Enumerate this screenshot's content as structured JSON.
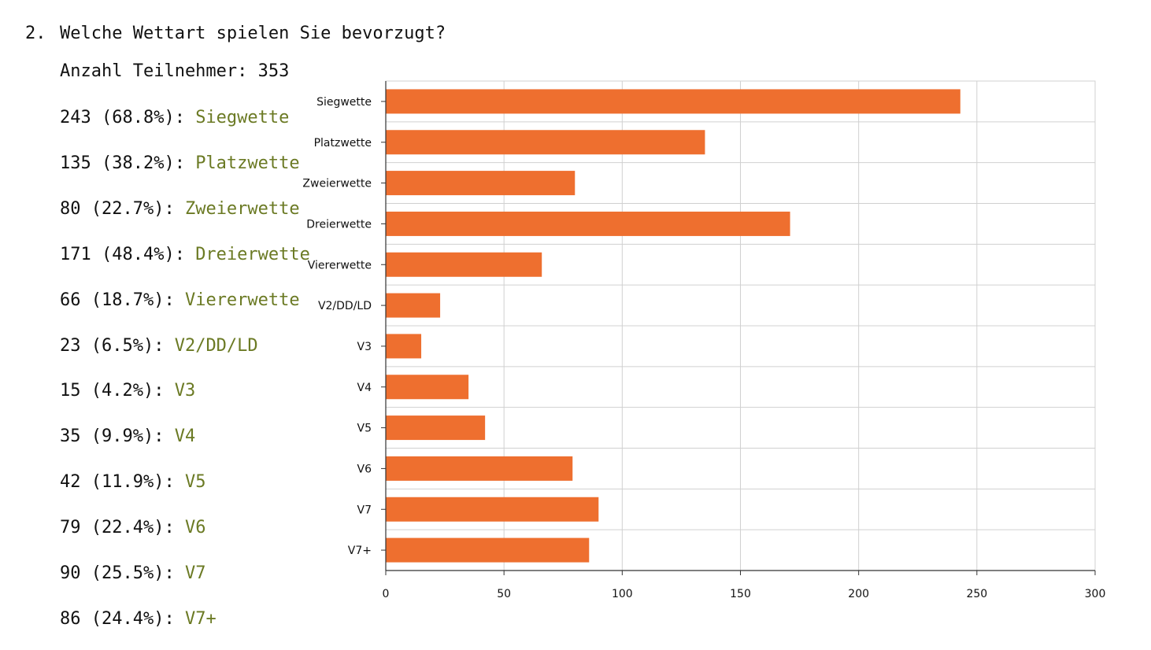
{
  "question": {
    "number": "2.",
    "text": "Welche Wettart spielen Sie bevorzugt?"
  },
  "participants": "Anzahl Teilnehmer: 353",
  "answers": [
    {
      "stat": "243 (68.8%): ",
      "label": "Siegwette"
    },
    {
      "stat": "135 (38.2%): ",
      "label": "Platzwette"
    },
    {
      "stat": "80 (22.7%): ",
      "label": "Zweierwette"
    },
    {
      "stat": "171 (48.4%): ",
      "label": "Dreierwette"
    },
    {
      "stat": "66 (18.7%): ",
      "label": "Viererwette"
    },
    {
      "stat": "23 (6.5%): ",
      "label": "V2/DD/LD"
    },
    {
      "stat": "15 (4.2%): ",
      "label": "V3"
    },
    {
      "stat": "35 (9.9%): ",
      "label": "V4"
    },
    {
      "stat": "42 (11.9%): ",
      "label": "V5"
    },
    {
      "stat": "79 (22.4%): ",
      "label": "V6"
    },
    {
      "stat": "90 (25.5%): ",
      "label": "V7"
    },
    {
      "stat": "86 (24.4%): ",
      "label": "V7+"
    }
  ],
  "colors": {
    "bar": "#ee6f2f",
    "answer_label": "#6b7a24",
    "grid": "#d0d0d0",
    "axis": "#333333"
  },
  "chart_data": {
    "type": "bar",
    "orientation": "horizontal",
    "categories": [
      "Siegwette",
      "Platzwette",
      "Zweierwette",
      "Dreierwette",
      "Viererwette",
      "V2/DD/LD",
      "V3",
      "V4",
      "V5",
      "V6",
      "V7",
      "V7+"
    ],
    "values": [
      243,
      135,
      80,
      171,
      66,
      23,
      15,
      35,
      42,
      79,
      90,
      86
    ],
    "x_ticks": [
      0,
      50,
      100,
      150,
      200,
      250,
      300
    ],
    "xlim": [
      0,
      300
    ],
    "grid": true,
    "title": "",
    "xlabel": "",
    "ylabel": ""
  }
}
